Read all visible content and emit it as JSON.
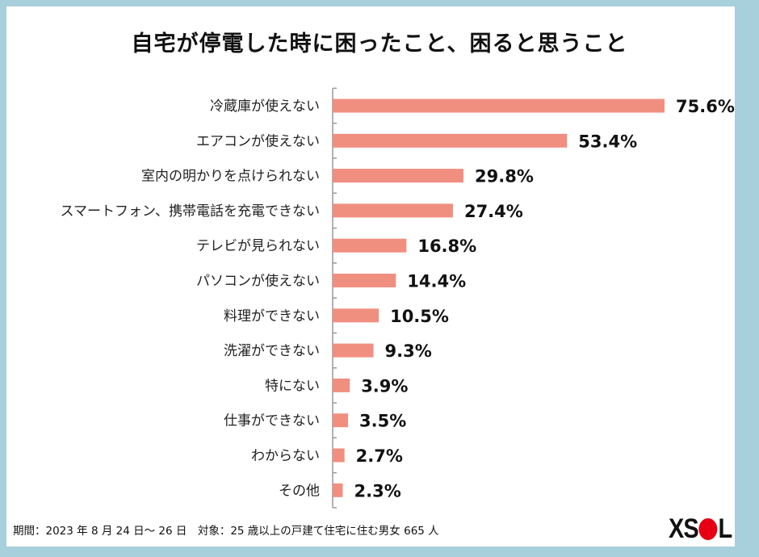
{
  "chart_data": {
    "type": "bar",
    "orientation": "horizontal",
    "title": "自宅が停電した時に困ったこと、困ると思うこと",
    "categories": [
      "冷蔵庫が使えない",
      "エアコンが使えない",
      "室内の明かりを点けられない",
      "スマートフォン、携帯電話を充電できない",
      "テレビが見られない",
      "パソコンが使えない",
      "料理ができない",
      "洗濯ができない",
      "特にない",
      "仕事ができない",
      "わからない",
      "その他"
    ],
    "values": [
      75.6,
      53.4,
      29.8,
      27.4,
      16.8,
      14.4,
      10.5,
      9.3,
      3.9,
      3.5,
      2.7,
      2.3
    ],
    "value_labels": [
      "75.6%",
      "53.4%",
      "29.8%",
      "27.4%",
      "16.8%",
      "14.4%",
      "10.5%",
      "9.3%",
      "3.9%",
      "3.5%",
      "2.7%",
      "2.3%"
    ],
    "unit": "%",
    "xlim": [
      0,
      76
    ],
    "grid": false,
    "bar_color": "#f08f80"
  },
  "footer": "期間：2023 年 8 月 24 日～ 26 日　対象：25 歳以上の戸建て住宅に住む男女 665 人",
  "logo": {
    "text": "XSOL",
    "circle_color": "#e60012"
  },
  "colors": {
    "border": "#a8cfdc",
    "background": "#ffffff"
  }
}
